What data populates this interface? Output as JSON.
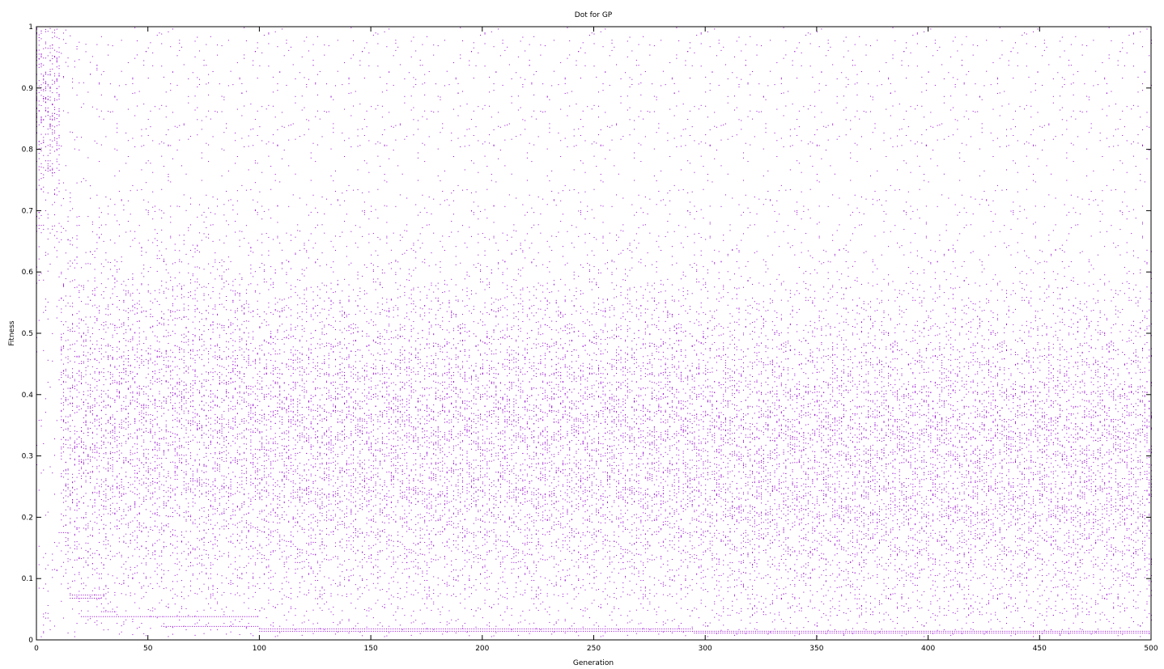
{
  "chart_data": {
    "type": "scatter",
    "title": "Dot for GP",
    "xlabel": "Generation",
    "ylabel": "Fitness",
    "xlim": [
      0,
      500
    ],
    "ylim": [
      0,
      1
    ],
    "x_ticks": [
      "0",
      "50",
      "100",
      "150",
      "200",
      "250",
      "300",
      "350",
      "400",
      "450",
      "500"
    ],
    "y_ticks": [
      "0",
      "0.1",
      "0.2",
      "0.3",
      "0.4",
      "0.5",
      "0.6",
      "0.7",
      "0.8",
      "0.9",
      "1"
    ],
    "grid": false,
    "legend": "none",
    "point_color": "#9400d3",
    "series": [
      {
        "points_per_generation": 50,
        "density_bands": [
          {
            "x_range": [
              0,
              10
            ],
            "y_center": 0.9,
            "y_spread": 0.12
          },
          {
            "x_range": [
              10,
              100
            ],
            "y_center": 0.35,
            "y_spread": 0.15
          },
          {
            "x_range": [
              100,
              300
            ],
            "y_center": 0.33,
            "y_spread": 0.14
          },
          {
            "x_range": [
              300,
              500
            ],
            "y_center": 0.3,
            "y_spread": 0.14
          }
        ],
        "best_fitness_steps": [
          {
            "x_range": [
              10,
              15
            ],
            "y": 0.175
          },
          {
            "x_range": [
              15,
              29
            ],
            "y": 0.073
          },
          {
            "x_range": [
              15,
              29
            ],
            "y": 0.068
          },
          {
            "x_range": [
              29,
              36
            ],
            "y": 0.046
          },
          {
            "x_range": [
              20,
              57
            ],
            "y": 0.038
          },
          {
            "x_range": [
              57,
              100
            ],
            "y": 0.038
          },
          {
            "x_range": [
              57,
              100
            ],
            "y": 0.022
          },
          {
            "x_range": [
              100,
              295
            ],
            "y": 0.018
          },
          {
            "x_range": [
              100,
              295
            ],
            "y": 0.014
          },
          {
            "x_range": [
              295,
              500
            ],
            "y": 0.014
          },
          {
            "x_range": [
              295,
              500
            ],
            "y": 0.011
          }
        ]
      }
    ]
  }
}
